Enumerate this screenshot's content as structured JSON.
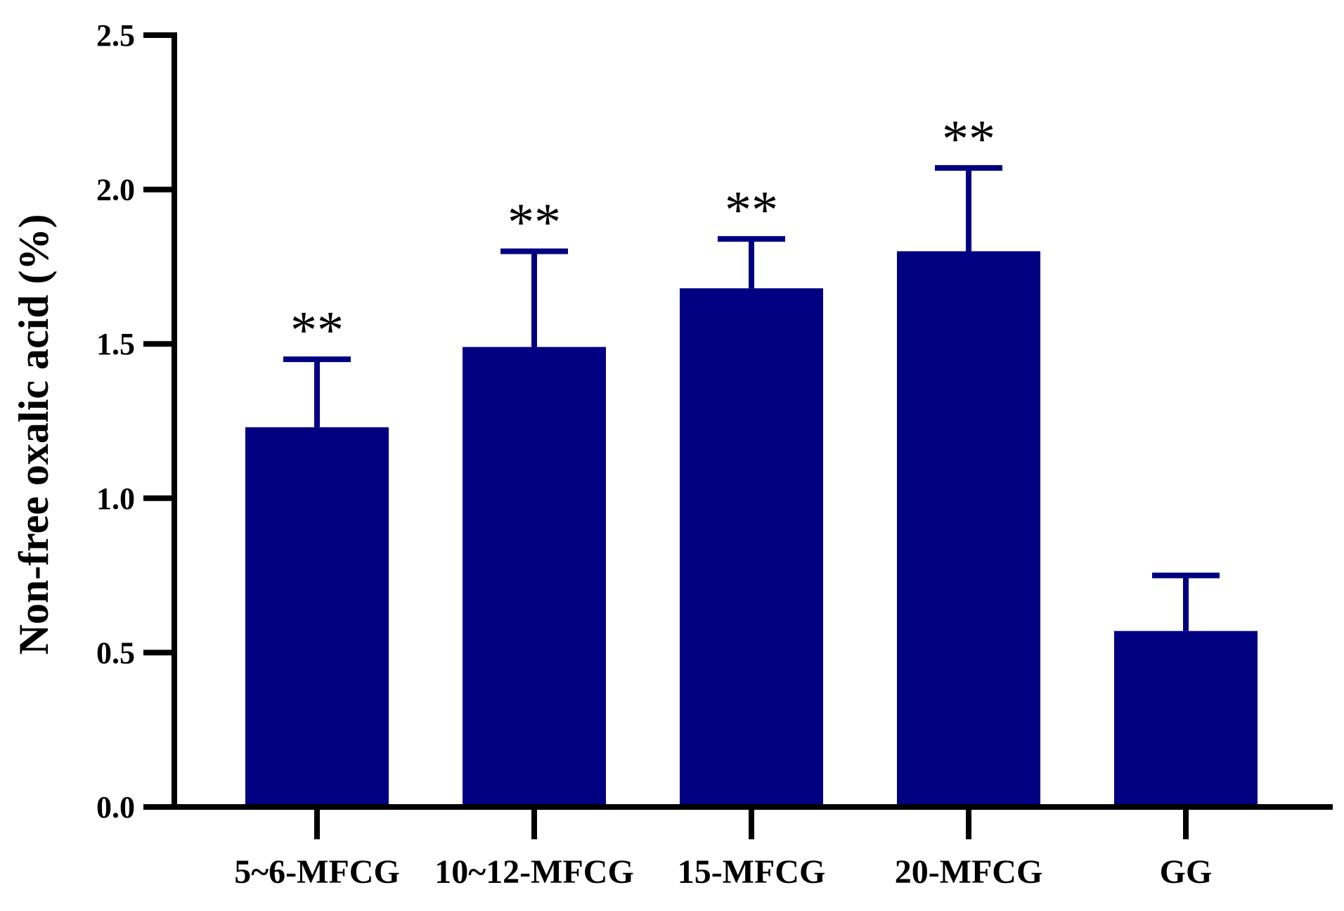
{
  "chart_data": {
    "type": "bar",
    "categories": [
      "5~6-MFCG",
      "10~12-MFCG",
      "15-MFCG",
      "20-MFCG",
      "GG"
    ],
    "values": [
      1.23,
      1.49,
      1.68,
      1.8,
      0.57
    ],
    "errors": [
      0.22,
      0.31,
      0.16,
      0.27,
      0.18
    ],
    "significance": [
      "**",
      "**",
      "**",
      "**",
      ""
    ],
    "ylabel": "Non-free oxalic acid  (%)",
    "xlabel": "",
    "ylim": [
      0,
      2.5
    ],
    "yticks": [
      "0.0",
      "0.5",
      "1.0",
      "1.5",
      "2.0",
      "2.5"
    ],
    "grid": false,
    "colors": {
      "bar": "#000080",
      "axis": "#000000"
    }
  }
}
